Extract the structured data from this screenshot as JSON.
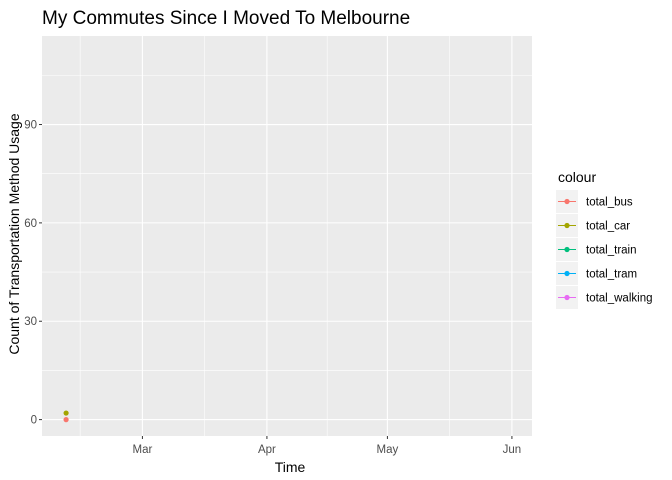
{
  "chart_data": {
    "type": "scatter",
    "title": "My Commutes Since I Moved To Melbourne",
    "xlabel": "Time",
    "ylabel": "Count of Transportation Method Usage",
    "x_axis": {
      "type": "date",
      "min": "2019-02-04",
      "max": "2019-06-06",
      "ticks": [
        {
          "date": "2019-03-01",
          "label": "Mar"
        },
        {
          "date": "2019-04-01",
          "label": "Apr"
        },
        {
          "date": "2019-05-01",
          "label": "May"
        },
        {
          "date": "2019-06-01",
          "label": "Jun"
        }
      ]
    },
    "y_axis": {
      "min": -5,
      "max": 117,
      "ticks": [
        0,
        30,
        60,
        90
      ]
    },
    "grid": true,
    "legend": {
      "title": "colour",
      "placement": "right"
    },
    "series": [
      {
        "name": "total_bus",
        "color": "#F8766D",
        "points": [
          {
            "x": "2019-02-10",
            "y": 0
          }
        ]
      },
      {
        "name": "total_car",
        "color": "#A3A500",
        "points": [
          {
            "x": "2019-02-10",
            "y": 2
          }
        ]
      },
      {
        "name": "total_train",
        "color": "#00BF7D",
        "points": []
      },
      {
        "name": "total_tram",
        "color": "#00B0F6",
        "points": []
      },
      {
        "name": "total_walking",
        "color": "#E76BF3",
        "points": []
      }
    ]
  }
}
